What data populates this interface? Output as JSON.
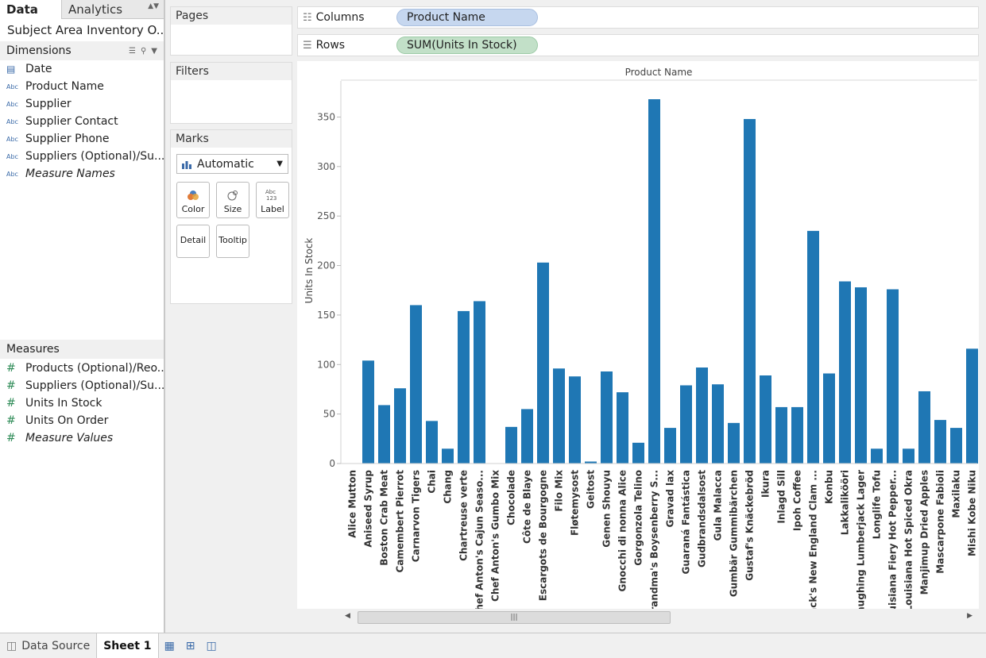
{
  "left_panel": {
    "tabs": {
      "data": "Data",
      "analytics": "Analytics"
    },
    "datasource": "Subject Area Inventory O...",
    "dimensions": {
      "title": "Dimensions",
      "items": [
        {
          "icon": "calendar-icon",
          "type": "date",
          "label": "Date"
        },
        {
          "icon": "abc-icon",
          "type": "text",
          "label": "Product Name"
        },
        {
          "icon": "abc-icon",
          "type": "text",
          "label": "Supplier"
        },
        {
          "icon": "abc-icon",
          "type": "text",
          "label": "Supplier Contact"
        },
        {
          "icon": "abc-icon",
          "type": "text",
          "label": "Supplier Phone"
        },
        {
          "icon": "abc-icon",
          "type": "text",
          "label": "Suppliers (Optional)/Su..."
        },
        {
          "icon": "abc-icon",
          "type": "text",
          "label": "Measure Names"
        }
      ]
    },
    "measures": {
      "title": "Measures",
      "items": [
        {
          "icon": "hash-icon",
          "label": "Products (Optional)/Reo..."
        },
        {
          "icon": "hash-icon",
          "label": "Suppliers (Optional)/Su..."
        },
        {
          "icon": "hash-icon",
          "label": "Units In Stock"
        },
        {
          "icon": "hash-icon",
          "label": "Units On Order"
        },
        {
          "icon": "hash-icon",
          "label": "Measure Values"
        }
      ]
    }
  },
  "cards": {
    "pages": "Pages",
    "filters": "Filters",
    "marks": {
      "title": "Marks",
      "type": "Automatic",
      "buttons": {
        "color": "Color",
        "size": "Size",
        "label": "Label",
        "detail": "Detail",
        "tooltip": "Tooltip"
      }
    }
  },
  "shelves": {
    "columns": {
      "label": "Columns",
      "pill": "Product Name"
    },
    "rows": {
      "label": "Rows",
      "pill": "SUM(Units In Stock)"
    }
  },
  "colors": {
    "bar": "#1f77b4",
    "dim_pill": "#c6d7ef",
    "measure_pill": "#c2e0c8"
  },
  "chart_data": {
    "type": "bar",
    "title": "Product Name",
    "xlabel": "",
    "ylabel": "Units In Stock",
    "ylim": [
      0,
      370
    ],
    "yticks": [
      0,
      50,
      100,
      150,
      200,
      250,
      300,
      350
    ],
    "grid": false,
    "categories": [
      "Alice Mutton",
      "Aniseed Syrup",
      "Boston Crab Meat",
      "Camembert Pierrot",
      "Carnarvon Tigers",
      "Chai",
      "Chang",
      "Chartreuse verte",
      "Chef Anton's Cajun Seaso...",
      "Chef Anton's Gumbo Mix",
      "Chocolade",
      "Côte de Blaye",
      "Escargots de Bourgogne",
      "Filo Mix",
      "Fløtemysost",
      "Geitost",
      "Genen Shouyu",
      "Gnocchi di nonna Alice",
      "Gorgonzola Telino",
      "Grandma's Boysenberry S...",
      "Gravad lax",
      "Guaraná Fantástica",
      "Gudbrandsdalsost",
      "Gula Malacca",
      "Gumbär Gummibärchen",
      "Gustaf's Knäckebröd",
      "Ikura",
      "Inlagd Sill",
      "Ipoh Coffee",
      "Jack's New England Clam ...",
      "Konbu",
      "Lakkalikööri",
      "Laughing Lumberjack Lager",
      "Longlife Tofu",
      "Louisiana Fiery Hot Pepper...",
      "Louisiana Hot Spiced Okra",
      "Manjimup Dried Apples",
      "Mascarpone Fabioli",
      "Maxilaku",
      "Mishi Kobe Niku"
    ],
    "values": [
      0,
      104,
      59,
      76,
      160,
      43,
      15,
      154,
      164,
      0,
      37,
      55,
      203,
      96,
      88,
      2,
      93,
      72,
      21,
      368,
      36,
      79,
      97,
      80,
      41,
      348,
      89,
      57,
      57,
      235,
      91,
      184,
      178,
      15,
      176,
      15,
      73,
      44,
      36,
      116
    ]
  }
}
